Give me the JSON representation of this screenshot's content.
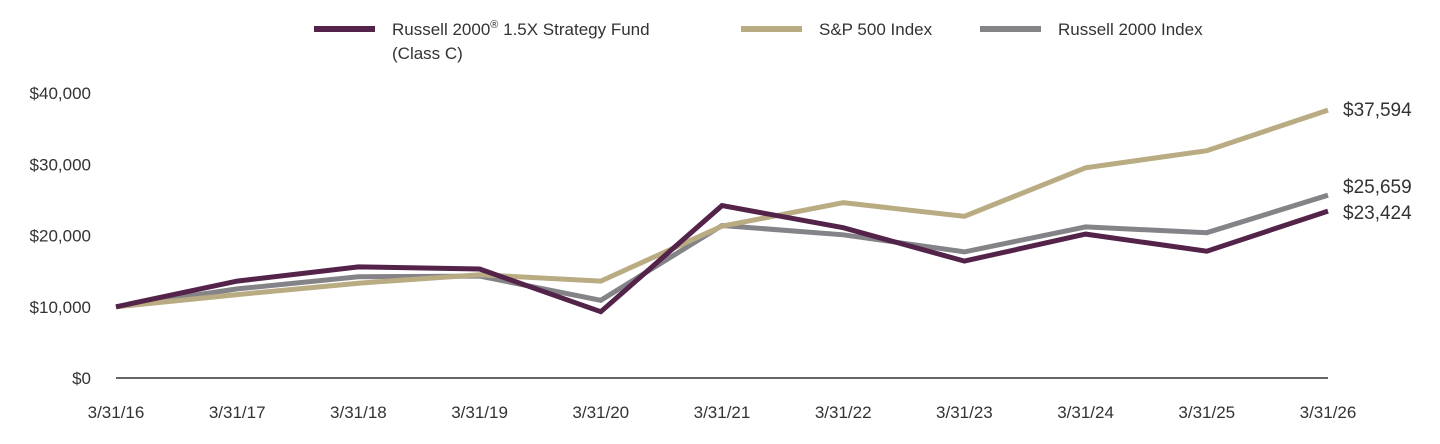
{
  "chart_data": {
    "type": "line",
    "categories": [
      "3/31/16",
      "3/31/17",
      "3/31/18",
      "3/31/19",
      "3/31/20",
      "3/31/21",
      "3/31/22",
      "3/31/23",
      "3/31/24",
      "3/31/25",
      "3/31/26"
    ],
    "y_tick_labels": [
      "$0",
      "$10,000",
      "$20,000",
      "$30,000",
      "$40,000"
    ],
    "y_ticks": [
      0,
      10000,
      20000,
      30000,
      40000
    ],
    "ylim": [
      0,
      40000
    ],
    "grid": false,
    "legend_position": "top",
    "series": [
      {
        "name": "Russell 2000",
        "name_sup": "®",
        "name_rest": " 1.5X Strategy Fund",
        "name_line2": "(Class C)",
        "color": "#532349",
        "values": [
          10000,
          13600,
          15600,
          15300,
          9300,
          24200,
          21100,
          16400,
          20200,
          17800,
          23424
        ],
        "end_label": "$23,424"
      },
      {
        "name": "S&P 500 Index",
        "color": "#b9ab82",
        "values": [
          10000,
          11700,
          13300,
          14500,
          13600,
          21300,
          24600,
          22700,
          29500,
          31900,
          37594
        ],
        "end_label": "$37,594"
      },
      {
        "name": "Russell 2000 Index",
        "color": "#848488",
        "values": [
          10000,
          12500,
          14200,
          14300,
          10900,
          21400,
          20100,
          17700,
          21200,
          20400,
          25659
        ],
        "end_label": "$25,659"
      }
    ]
  }
}
